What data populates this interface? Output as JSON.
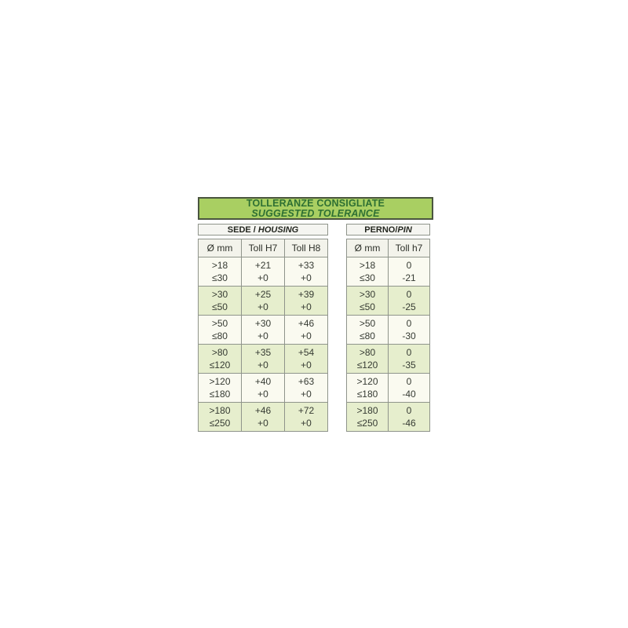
{
  "title": {
    "line1": "TOLLERANZE CONSIGLIATE",
    "line2": "SUGGESTED TOLERANCE"
  },
  "housing": {
    "section_label_it": "SEDE / ",
    "section_label_en": "HOUSING",
    "columns": [
      "Ø mm",
      "Toll H7",
      "Toll H8"
    ],
    "rows": [
      {
        "dia": [
          ">18",
          "≤30"
        ],
        "h7": [
          "+21",
          "+0"
        ],
        "h8": [
          "+33",
          "+0"
        ]
      },
      {
        "dia": [
          ">30",
          "≤50"
        ],
        "h7": [
          "+25",
          "+0"
        ],
        "h8": [
          "+39",
          "+0"
        ]
      },
      {
        "dia": [
          ">50",
          "≤80"
        ],
        "h7": [
          "+30",
          "+0"
        ],
        "h8": [
          "+46",
          "+0"
        ]
      },
      {
        "dia": [
          ">80",
          "≤120"
        ],
        "h7": [
          "+35",
          "+0"
        ],
        "h8": [
          "+54",
          "+0"
        ]
      },
      {
        "dia": [
          ">120",
          "≤180"
        ],
        "h7": [
          "+40",
          "+0"
        ],
        "h8": [
          "+63",
          "+0"
        ]
      },
      {
        "dia": [
          ">180",
          "≤250"
        ],
        "h7": [
          "+46",
          "+0"
        ],
        "h8": [
          "+72",
          "+0"
        ]
      }
    ]
  },
  "pin": {
    "section_label_it": "PERNO/",
    "section_label_en": "PIN",
    "columns": [
      "Ø mm",
      "Toll h7"
    ],
    "rows": [
      {
        "dia": [
          ">18",
          "≤30"
        ],
        "h7": [
          "0",
          "-21"
        ]
      },
      {
        "dia": [
          ">30",
          "≤50"
        ],
        "h7": [
          "0",
          "-25"
        ]
      },
      {
        "dia": [
          ">50",
          "≤80"
        ],
        "h7": [
          "0",
          "-30"
        ]
      },
      {
        "dia": [
          ">80",
          "≤120"
        ],
        "h7": [
          "0",
          "-35"
        ]
      },
      {
        "dia": [
          ">120",
          "≤180"
        ],
        "h7": [
          "0",
          "-40"
        ]
      },
      {
        "dia": [
          ">180",
          "≤250"
        ],
        "h7": [
          "0",
          "-46"
        ]
      }
    ]
  },
  "colors": {
    "title_bg": "#a9cf62",
    "title_text": "#2e7033",
    "title_border": "#4a553f",
    "box_bg": "#f5f5f1",
    "box_border": "#8f948b",
    "outer_border": "#79806f",
    "header_row_bg": "#f3f3eb",
    "row_cream": "#fafaf0",
    "row_green": "#e6eecd",
    "panel_text": "#363b33",
    "page_bg": "#ffffff"
  }
}
